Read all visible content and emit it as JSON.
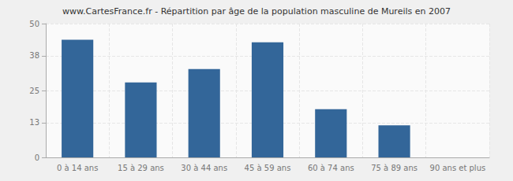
{
  "chart_data": {
    "type": "bar",
    "title": "www.CartesFrance.fr - Répartition par âge de la population masculine de Mureils en 2007",
    "categories": [
      "0 à 14 ans",
      "15 à 29 ans",
      "30 à 44 ans",
      "45 à 59 ans",
      "60 à 74 ans",
      "75 à 89 ans",
      "90 ans et plus"
    ],
    "values": [
      44,
      28,
      33,
      43,
      18,
      12,
      0
    ],
    "color": "#336699",
    "ylim": [
      0,
      50
    ],
    "yticks": [
      0,
      13,
      25,
      38,
      50
    ],
    "grid": true
  }
}
